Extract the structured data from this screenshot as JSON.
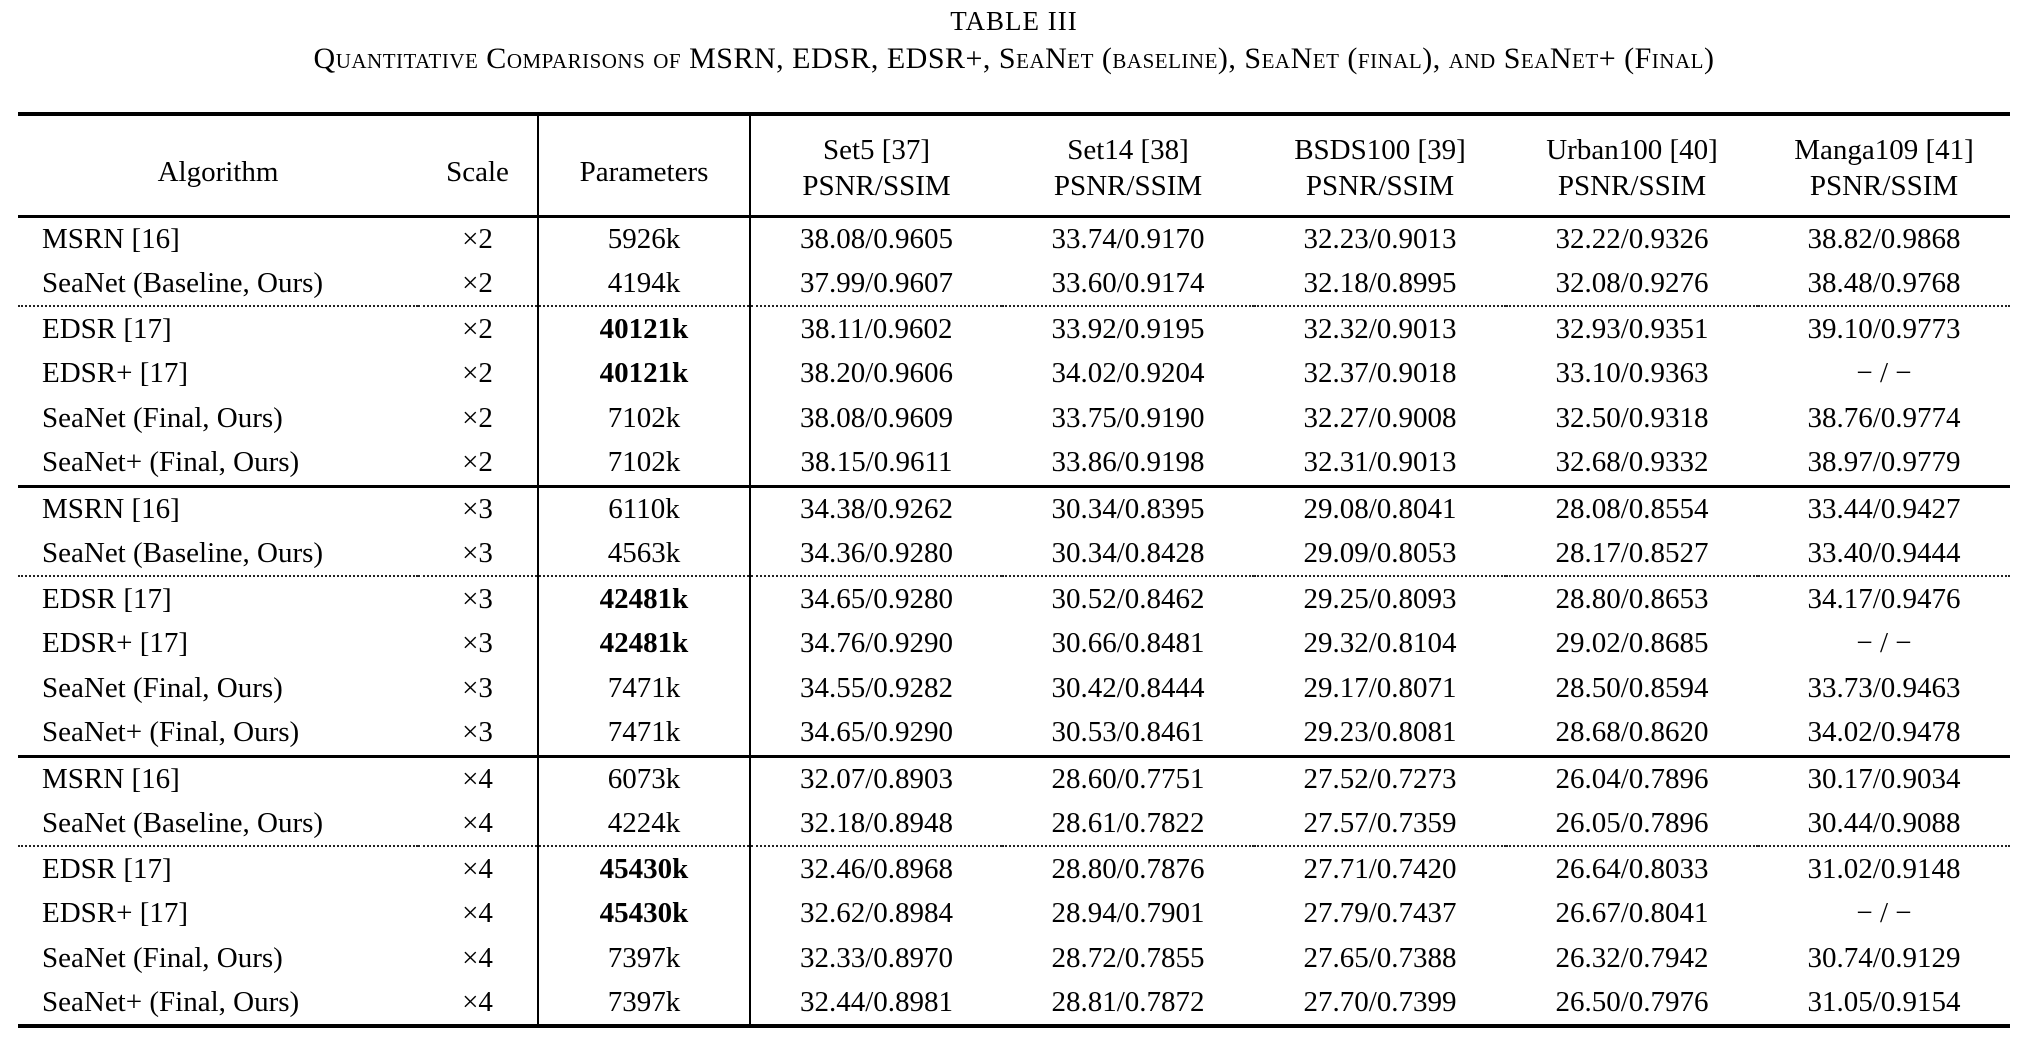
{
  "caption": {
    "number": "TABLE III",
    "title": "Quantitative Comparisons of MSRN, EDSR, EDSR+, SeaNet (baseline), SeaNet (final), and SeaNet+ (Final)"
  },
  "table": {
    "columns": {
      "algorithm": "Algorithm",
      "scale": "Scale",
      "parameters": "Parameters",
      "benchmarks": [
        {
          "name": "Set5 [37]",
          "metric": "PSNR/SSIM"
        },
        {
          "name": "Set14 [38]",
          "metric": "PSNR/SSIM"
        },
        {
          "name": "BSDS100 [39]",
          "metric": "PSNR/SSIM"
        },
        {
          "name": "Urban100 [40]",
          "metric": "PSNR/SSIM"
        },
        {
          "name": "Manga109 [41]",
          "metric": "PSNR/SSIM"
        }
      ]
    },
    "groups": [
      {
        "scale": "×2",
        "rows": [
          {
            "algorithm": "MSRN [16]",
            "scale": "×2",
            "parameters": "5926k",
            "parameters_bold": false,
            "separator_before": null,
            "values": [
              "38.08/0.9605",
              "33.74/0.9170",
              "32.23/0.9013",
              "32.22/0.9326",
              "38.82/0.9868"
            ]
          },
          {
            "algorithm": "SeaNet (Baseline, Ours)",
            "scale": "×2",
            "parameters": "4194k",
            "parameters_bold": false,
            "separator_before": null,
            "values": [
              "37.99/0.9607",
              "33.60/0.9174",
              "32.18/0.8995",
              "32.08/0.9276",
              "38.48/0.9768"
            ]
          },
          {
            "algorithm": "EDSR [17]",
            "scale": "×2",
            "parameters": "40121k",
            "parameters_bold": true,
            "separator_before": "dotted",
            "values": [
              "38.11/0.9602",
              "33.92/0.9195",
              "32.32/0.9013",
              "32.93/0.9351",
              "39.10/0.9773"
            ]
          },
          {
            "algorithm": "EDSR+ [17]",
            "scale": "×2",
            "parameters": "40121k",
            "parameters_bold": true,
            "separator_before": null,
            "values": [
              "38.20/0.9606",
              "34.02/0.9204",
              "32.37/0.9018",
              "33.10/0.9363",
              "− / −"
            ]
          },
          {
            "algorithm": "SeaNet (Final, Ours)",
            "scale": "×2",
            "parameters": "7102k",
            "parameters_bold": false,
            "separator_before": null,
            "values": [
              "38.08/0.9609",
              "33.75/0.9190",
              "32.27/0.9008",
              "32.50/0.9318",
              "38.76/0.9774"
            ]
          },
          {
            "algorithm": "SeaNet+ (Final, Ours)",
            "scale": "×2",
            "parameters": "7102k",
            "parameters_bold": false,
            "separator_before": null,
            "values": [
              "38.15/0.9611",
              "33.86/0.9198",
              "32.31/0.9013",
              "32.68/0.9332",
              "38.97/0.9779"
            ]
          }
        ]
      },
      {
        "scale": "×3",
        "rows": [
          {
            "algorithm": "MSRN [16]",
            "scale": "×3",
            "parameters": "6110k",
            "parameters_bold": false,
            "separator_before": null,
            "values": [
              "34.38/0.9262",
              "30.34/0.8395",
              "29.08/0.8041",
              "28.08/0.8554",
              "33.44/0.9427"
            ]
          },
          {
            "algorithm": "SeaNet (Baseline, Ours)",
            "scale": "×3",
            "parameters": "4563k",
            "parameters_bold": false,
            "separator_before": null,
            "values": [
              "34.36/0.9280",
              "30.34/0.8428",
              "29.09/0.8053",
              "28.17/0.8527",
              "33.40/0.9444"
            ]
          },
          {
            "algorithm": "EDSR [17]",
            "scale": "×3",
            "parameters": "42481k",
            "parameters_bold": true,
            "separator_before": "dotted",
            "values": [
              "34.65/0.9280",
              "30.52/0.8462",
              "29.25/0.8093",
              "28.80/0.8653",
              "34.17/0.9476"
            ]
          },
          {
            "algorithm": "EDSR+ [17]",
            "scale": "×3",
            "parameters": "42481k",
            "parameters_bold": true,
            "separator_before": null,
            "values": [
              "34.76/0.9290",
              "30.66/0.8481",
              "29.32/0.8104",
              "29.02/0.8685",
              "− / −"
            ]
          },
          {
            "algorithm": "SeaNet (Final, Ours)",
            "scale": "×3",
            "parameters": "7471k",
            "parameters_bold": false,
            "separator_before": null,
            "values": [
              "34.55/0.9282",
              "30.42/0.8444",
              "29.17/0.8071",
              "28.50/0.8594",
              "33.73/0.9463"
            ]
          },
          {
            "algorithm": "SeaNet+ (Final, Ours)",
            "scale": "×3",
            "parameters": "7471k",
            "parameters_bold": false,
            "separator_before": null,
            "values": [
              "34.65/0.9290",
              "30.53/0.8461",
              "29.23/0.8081",
              "28.68/0.8620",
              "34.02/0.9478"
            ]
          }
        ]
      },
      {
        "scale": "×4",
        "rows": [
          {
            "algorithm": "MSRN [16]",
            "scale": "×4",
            "parameters": "6073k",
            "parameters_bold": false,
            "separator_before": null,
            "values": [
              "32.07/0.8903",
              "28.60/0.7751",
              "27.52/0.7273",
              "26.04/0.7896",
              "30.17/0.9034"
            ]
          },
          {
            "algorithm": "SeaNet (Baseline, Ours)",
            "scale": "×4",
            "parameters": "4224k",
            "parameters_bold": false,
            "separator_before": null,
            "values": [
              "32.18/0.8948",
              "28.61/0.7822",
              "27.57/0.7359",
              "26.05/0.7896",
              "30.44/0.9088"
            ]
          },
          {
            "algorithm": "EDSR [17]",
            "scale": "×4",
            "parameters": "45430k",
            "parameters_bold": true,
            "separator_before": "dotted",
            "values": [
              "32.46/0.8968",
              "28.80/0.7876",
              "27.71/0.7420",
              "26.64/0.8033",
              "31.02/0.9148"
            ]
          },
          {
            "algorithm": "EDSR+ [17]",
            "scale": "×4",
            "parameters": "45430k",
            "parameters_bold": true,
            "separator_before": null,
            "values": [
              "32.62/0.8984",
              "28.94/0.7901",
              "27.79/0.7437",
              "26.67/0.8041",
              "− / −"
            ]
          },
          {
            "algorithm": "SeaNet (Final, Ours)",
            "scale": "×4",
            "parameters": "7397k",
            "parameters_bold": false,
            "separator_before": null,
            "values": [
              "32.33/0.8970",
              "28.72/0.7855",
              "27.65/0.7388",
              "26.32/0.7942",
              "30.74/0.9129"
            ]
          },
          {
            "algorithm": "SeaNet+ (Final, Ours)",
            "scale": "×4",
            "parameters": "7397k",
            "parameters_bold": false,
            "separator_before": null,
            "values": [
              "32.44/0.8981",
              "28.81/0.7872",
              "27.70/0.7399",
              "26.50/0.7976",
              "31.05/0.9154"
            ]
          }
        ]
      }
    ]
  }
}
